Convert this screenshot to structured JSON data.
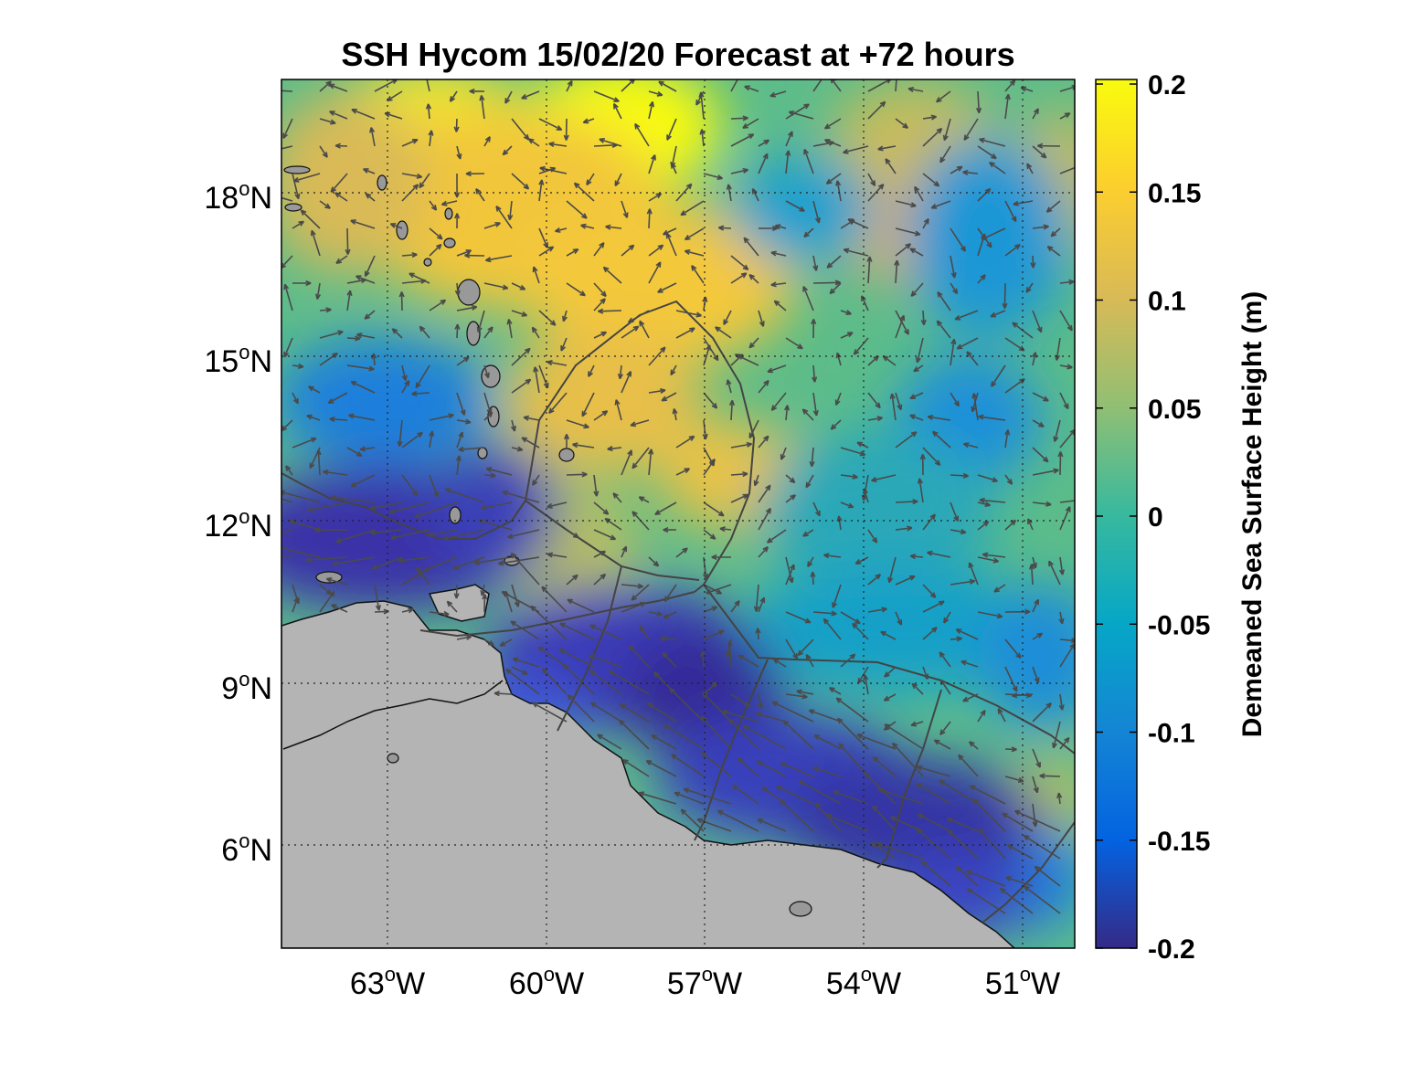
{
  "title": "SSH Hycom 15/02/20 Forecast at +72 hours",
  "map": {
    "lon_range": [
      -65,
      -50
    ],
    "lat_range": [
      4,
      20
    ],
    "lon_ticks": [
      {
        "value": -63,
        "deg": "63",
        "sup": "o",
        "dir": "W"
      },
      {
        "value": -60,
        "deg": "60",
        "sup": "o",
        "dir": "W"
      },
      {
        "value": -57,
        "deg": "57",
        "sup": "o",
        "dir": "W"
      },
      {
        "value": -54,
        "deg": "54",
        "sup": "o",
        "dir": "W"
      },
      {
        "value": -51,
        "deg": "51",
        "sup": "o",
        "dir": "W"
      }
    ],
    "lat_ticks": [
      {
        "value": 18,
        "deg": "18",
        "sup": "o",
        "dir": "N"
      },
      {
        "value": 15,
        "deg": "15",
        "sup": "o",
        "dir": "N"
      },
      {
        "value": 12,
        "deg": "12",
        "sup": "o",
        "dir": "N"
      },
      {
        "value": 9,
        "deg": "9",
        "sup": "o",
        "dir": "N"
      },
      {
        "value": 6,
        "deg": "6",
        "sup": "o",
        "dir": "N"
      }
    ],
    "grid": "dotted",
    "land_color": "#b4b4b4",
    "arrow_color": "#4a4a4a"
  },
  "colorbar": {
    "label": "Demeaned Sea Surface Height (m)",
    "min": -0.2,
    "max": 0.2,
    "ticks": [
      "0.2",
      "0.15",
      "0.1",
      "0.05",
      "0",
      "-0.05",
      "-0.1",
      "-0.15",
      "-0.2"
    ],
    "colormap": "parula",
    "colors": [
      "#352a87",
      "#0363e1",
      "#1485d4",
      "#06a7c6",
      "#38b99e",
      "#92bf73",
      "#d9ba56",
      "#fcce2e",
      "#f9fb0e"
    ]
  }
}
